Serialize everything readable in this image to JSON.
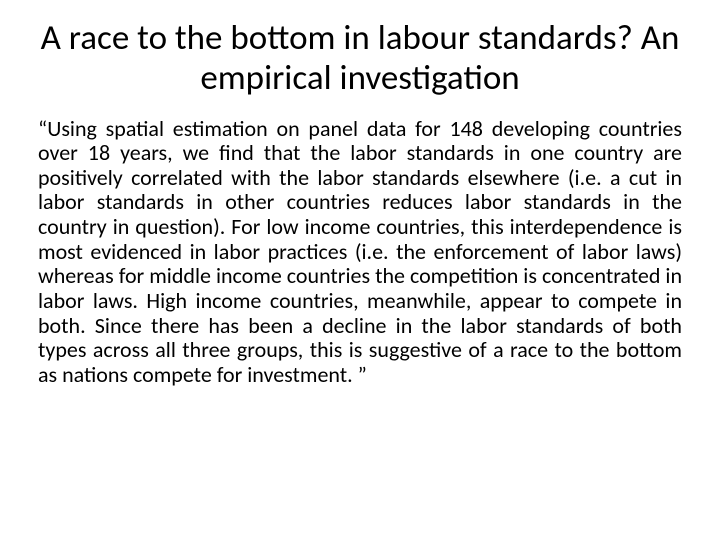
{
  "slide": {
    "title": "A race to the bottom in labour standards? An empirical investigation",
    "body": "“Using spatial estimation on panel data for 148 developing countries over 18 years, we find that  the labor standards in one country are positively correlated with the labor standards elsewhere  (i.e. a cut in labor standards in other countries reduces labor standards in the country in  question). For low income countries, this interdependence is most evidenced in labor practices  (i.e. the enforcement of labor laws) whereas for middle income countries the competition is concentrated in labor laws. High income countries, meanwhile, appear to compete in both. Since there has been a decline in the labor standards of both types across all three groups, this is suggestive of a race to the bottom as nations compete for investment. ”",
    "colors": {
      "background": "#ffffff",
      "text": "#000000"
    },
    "typography": {
      "title_fontsize": 35,
      "body_fontsize": 22,
      "font_family": "Calibri"
    }
  }
}
